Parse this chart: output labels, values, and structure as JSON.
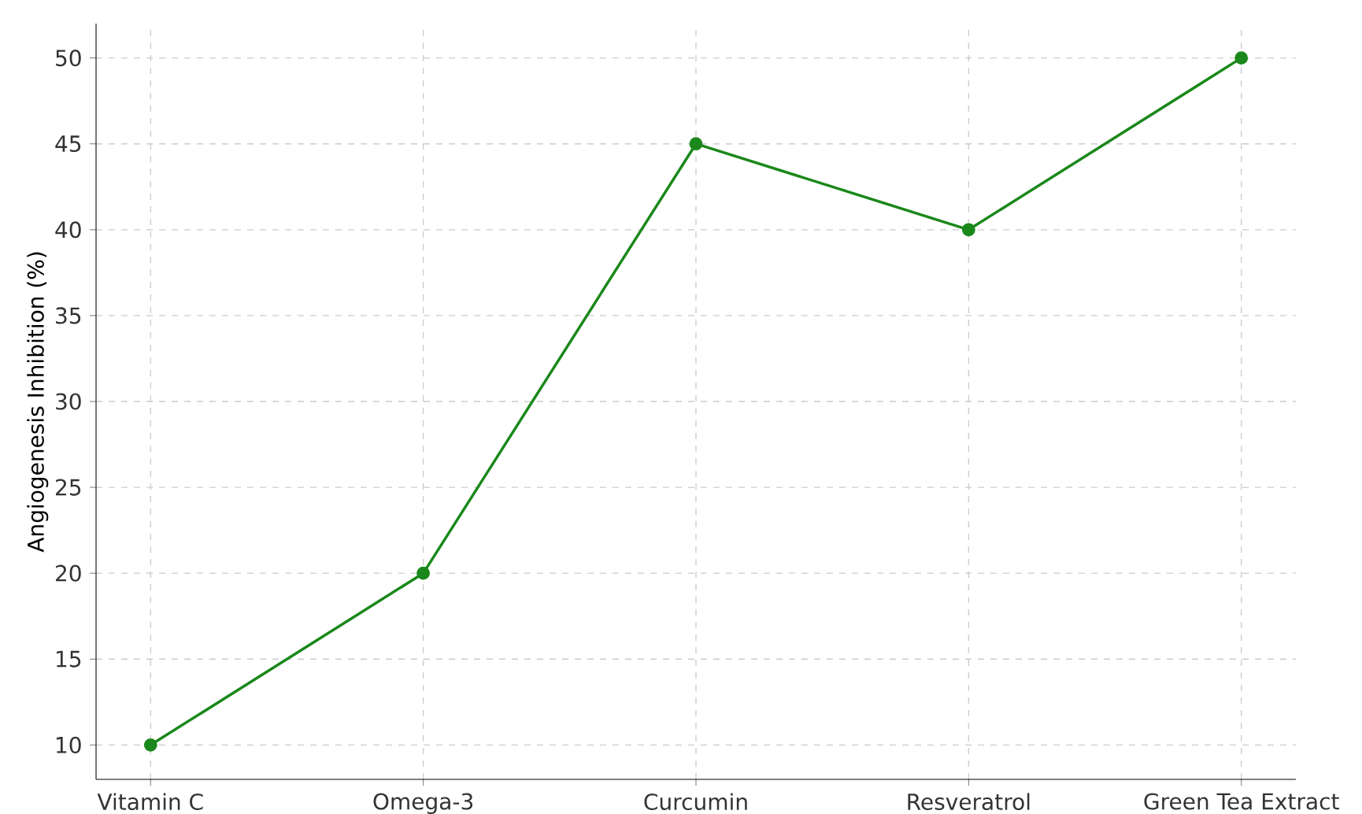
{
  "chart_data": {
    "type": "line",
    "ylabel": "Angiogenesis Inhibition (%)",
    "categories": [
      "Vitamin C",
      "Omega-3",
      "Curcumin",
      "Resveratrol",
      "Green Tea Extract"
    ],
    "values": [
      10,
      20,
      45,
      40,
      50
    ],
    "color": "#1a881a",
    "marker": "circle",
    "line_style": "solid",
    "ylim": [
      8,
      52
    ],
    "yticks": [
      10,
      15,
      20,
      25,
      30,
      35,
      40,
      45,
      50
    ],
    "grid": true
  }
}
